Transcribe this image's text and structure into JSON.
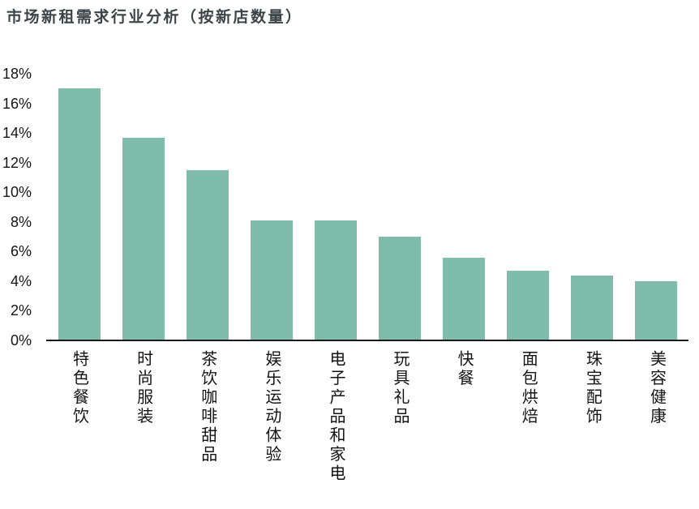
{
  "page": {
    "title": "市场新租需求行业分析（按新店数量）"
  },
  "colors": {
    "bar": "#80bcac",
    "title_text": "#3c4448",
    "axis_line": "#1a1a1a",
    "tick_text": "#141414",
    "background": "#ffffff"
  },
  "chart_data": {
    "type": "bar",
    "title": "市场新租需求行业分析（按新店数量）",
    "categories": [
      "特色餐饮",
      "时尚服装",
      "茶饮咖啡甜品",
      "娱乐运动体验",
      "电子产品和家电",
      "玩具礼品",
      "快餐",
      "面包烘焙",
      "珠宝配饰",
      "美容健康"
    ],
    "values": [
      17.0,
      13.7,
      11.5,
      8.1,
      8.1,
      7.0,
      5.6,
      4.7,
      4.4,
      4.0
    ],
    "xlabel": "",
    "ylabel": "",
    "ylim": [
      0,
      18
    ],
    "ytick_step": 2,
    "ytick_labels": [
      "0%",
      "2%",
      "4%",
      "6%",
      "8%",
      "10%",
      "12%",
      "14%",
      "16%",
      "18%"
    ],
    "grid": false,
    "legend": false,
    "bar_color": "#80bcac",
    "value_unit": "%",
    "x_label_orientation": "vertical-stacked"
  }
}
